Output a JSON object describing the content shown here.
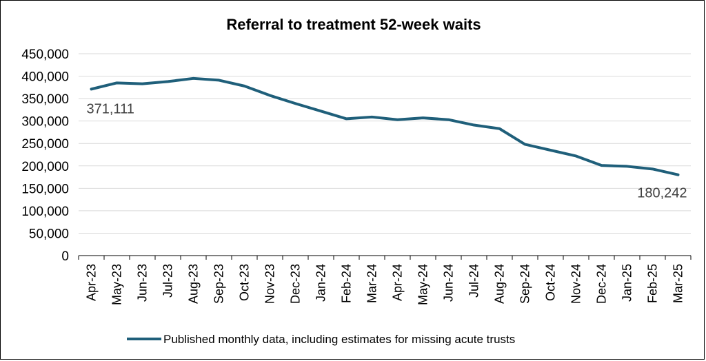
{
  "chart_data": {
    "type": "line",
    "title": "Referral to treatment 52-week waits",
    "xlabel": "",
    "ylabel": "",
    "ylim": [
      0,
      450000
    ],
    "ytick_values": [
      0,
      50000,
      100000,
      150000,
      200000,
      250000,
      300000,
      350000,
      400000,
      450000
    ],
    "ytick_labels": [
      "0",
      "50,000",
      "100,000",
      "150,000",
      "200,000",
      "250,000",
      "300,000",
      "350,000",
      "400,000",
      "450,000"
    ],
    "grid": true,
    "legend_position": "bottom",
    "categories": [
      "Apr-23",
      "May-23",
      "Jun-23",
      "Jul-23",
      "Aug-23",
      "Sep-23",
      "Oct-23",
      "Nov-23",
      "Dec-23",
      "Jan-24",
      "Feb-24",
      "Mar-24",
      "Apr-24",
      "May-24",
      "Jun-24",
      "Jul-24",
      "Aug-24",
      "Sep-24",
      "Oct-24",
      "Nov-24",
      "Dec-24",
      "Jan-25",
      "Feb-25",
      "Mar-25"
    ],
    "series": [
      {
        "name": "Published monthly data, including estimates for missing acute trusts",
        "color": "#1f5f7a",
        "values": [
          371111,
          385000,
          383000,
          388000,
          395000,
          391000,
          378000,
          357000,
          339000,
          322000,
          305000,
          309000,
          303000,
          307000,
          303000,
          291000,
          283000,
          248000,
          235000,
          222000,
          201000,
          199000,
          193000,
          180242
        ]
      }
    ],
    "data_labels": [
      {
        "index": 0,
        "text": "371,111"
      },
      {
        "index": 23,
        "text": "180,242"
      }
    ]
  }
}
